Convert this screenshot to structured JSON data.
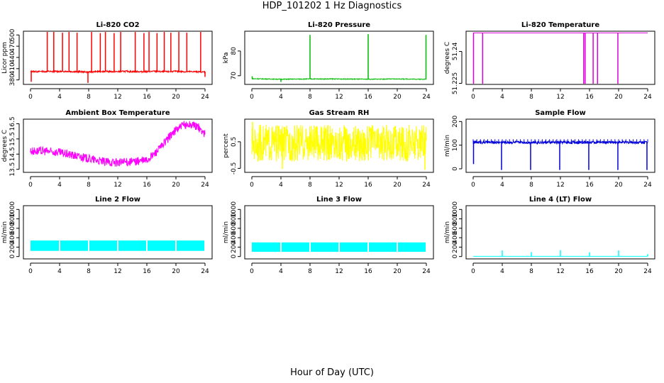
{
  "title": "HDP_101202  1 Hz Diagnostics",
  "xlabel": "Hour of Day (UTC)",
  "chart_data": [
    {
      "type": "line",
      "title": "Li-820 CO2",
      "ylabel": "Licor ppm",
      "color": "#ff0000",
      "xlim": [
        0,
        24
      ],
      "xticks": [
        0,
        4,
        8,
        12,
        16,
        20,
        24
      ],
      "ylim": [
        368,
        510
      ],
      "yticks": [
        380,
        410,
        440,
        470,
        500
      ],
      "x": [
        0,
        0.3,
        1,
        1.5,
        2,
        2.3,
        3,
        3.5,
        4,
        5,
        6,
        7,
        8,
        9,
        10,
        11,
        12,
        13,
        14,
        15,
        16,
        17,
        18,
        19,
        20,
        21,
        22,
        23,
        24
      ],
      "values": [
        402,
        403,
        402,
        403,
        402,
        403,
        402,
        403,
        402,
        403,
        402,
        402,
        401,
        402,
        403,
        402,
        402,
        403,
        402,
        402,
        402,
        403,
        402,
        402,
        403,
        402,
        402,
        402,
        401
      ],
      "spikes": [
        {
          "x": 0.1,
          "y": 375
        },
        {
          "x": 2.3,
          "y": 508
        },
        {
          "x": 3.2,
          "y": 508
        },
        {
          "x": 4.4,
          "y": 506
        },
        {
          "x": 5.3,
          "y": 508
        },
        {
          "x": 6.4,
          "y": 506
        },
        {
          "x": 8.4,
          "y": 508
        },
        {
          "x": 9.6,
          "y": 505
        },
        {
          "x": 10.3,
          "y": 508
        },
        {
          "x": 11.5,
          "y": 505
        },
        {
          "x": 12.4,
          "y": 508
        },
        {
          "x": 14.4,
          "y": 508
        },
        {
          "x": 15.6,
          "y": 505
        },
        {
          "x": 16.3,
          "y": 508
        },
        {
          "x": 17.4,
          "y": 505
        },
        {
          "x": 18.4,
          "y": 508
        },
        {
          "x": 19.3,
          "y": 506
        },
        {
          "x": 20.4,
          "y": 508
        },
        {
          "x": 21.5,
          "y": 506
        },
        {
          "x": 23.4,
          "y": 508
        },
        {
          "x": 7.9,
          "y": 372
        },
        {
          "x": 24,
          "y": 388
        }
      ],
      "noise": 2
    },
    {
      "type": "line",
      "title": "Li-820 Pressure",
      "ylabel": "kPa",
      "color": "#00bb00",
      "xlim": [
        0,
        24
      ],
      "xticks": [
        0,
        4,
        8,
        12,
        16,
        20,
        24
      ],
      "ylim": [
        66.5,
        88
      ],
      "yticks": [
        70,
        80
      ],
      "x": [
        0,
        4,
        8,
        12,
        16,
        20,
        24
      ],
      "values": [
        68.8,
        68.6,
        68.7,
        68.7,
        68.6,
        68.7,
        68.6
      ],
      "spikes": [
        {
          "x": 8,
          "y": 86.5
        },
        {
          "x": 16,
          "y": 86.8
        },
        {
          "x": 23.95,
          "y": 86.5
        },
        {
          "x": 0.05,
          "y": 69.8
        },
        {
          "x": 4,
          "y": 67.5
        }
      ],
      "noise": 0.15
    },
    {
      "type": "line",
      "title": "Li-820 Temperature",
      "ylabel": "degrees C",
      "color": "#dd00dd",
      "xlim": [
        0,
        24
      ],
      "xticks": [
        0,
        4,
        8,
        12,
        16,
        20,
        24
      ],
      "ylim": [
        51.2245,
        51.2495
      ],
      "yticks": [
        51.225,
        51.24
      ],
      "x": [
        0,
        24
      ],
      "values": [
        51.2487,
        51.2487
      ],
      "spikes": [
        {
          "x": 0.05,
          "y": 51.2248
        },
        {
          "x": 1.3,
          "y": 51.2248
        },
        {
          "x": 15.2,
          "y": 51.2248
        },
        {
          "x": 15.4,
          "y": 51.2248
        },
        {
          "x": 16.5,
          "y": 51.2248
        },
        {
          "x": 17.1,
          "y": 51.2248
        },
        {
          "x": 19.9,
          "y": 51.2248
        }
      ],
      "noise": 0
    },
    {
      "type": "line",
      "title": "Ambient Box Temperature",
      "ylabel": "degrees C",
      "color": "#ff00ff",
      "xlim": [
        0,
        24
      ],
      "xticks": [
        0,
        4,
        8,
        12,
        16,
        20,
        24
      ],
      "ylim": [
        13.3,
        16.8
      ],
      "yticks": [
        13.5,
        14.5,
        15.5,
        16.5
      ],
      "x": [
        0,
        2,
        4,
        6,
        8,
        10,
        12,
        14,
        16,
        17,
        18,
        19,
        20,
        21,
        22,
        23,
        24
      ],
      "values": [
        14.7,
        14.7,
        14.6,
        14.4,
        14.2,
        14.0,
        13.95,
        14.0,
        14.1,
        14.5,
        15.0,
        15.6,
        16.1,
        16.4,
        16.45,
        16.3,
        15.8
      ],
      "spikes": [],
      "noise": 0.28
    },
    {
      "type": "line",
      "title": "Gas Stream RH",
      "ylabel": "percent",
      "color": "#ffff00",
      "xlim": [
        0,
        24
      ],
      "xticks": [
        0,
        4,
        8,
        12,
        16,
        20,
        24
      ],
      "ylim": [
        -0.65,
        1.35
      ],
      "yticks": [
        -0.5,
        0.5
      ],
      "x": [
        0,
        24
      ],
      "values": [
        0.45,
        0.45
      ],
      "spikes": [
        {
          "x": 23.8,
          "y": -0.55
        },
        {
          "x": 4.2,
          "y": -0.52
        },
        {
          "x": 0.1,
          "y": 1.25
        }
      ],
      "noise": 0.7
    },
    {
      "type": "line",
      "title": "Sample Flow",
      "ylabel": "ml/min",
      "color": "#0000dd",
      "xlim": [
        0,
        24
      ],
      "xticks": [
        0,
        4,
        8,
        12,
        16,
        20,
        24
      ],
      "ylim": [
        -15,
        210
      ],
      "yticks": [
        0,
        100,
        200
      ],
      "x": [
        0,
        24
      ],
      "values": [
        112,
        112
      ],
      "spikes": [
        {
          "x": 0.05,
          "y": 20
        },
        {
          "x": 3.9,
          "y": -5
        },
        {
          "x": 7.9,
          "y": -5
        },
        {
          "x": 11.9,
          "y": -5
        },
        {
          "x": 15.9,
          "y": -5
        },
        {
          "x": 19.9,
          "y": -5
        },
        {
          "x": 23.9,
          "y": -5
        }
      ],
      "ticks_above": 125,
      "noise": 6
    },
    {
      "type": "line",
      "title": "Line 2 Flow",
      "ylabel": "ml/min",
      "color": "#00ffff",
      "xlim": [
        0,
        24
      ],
      "xticks": [
        0,
        4,
        8,
        12,
        16,
        20,
        24
      ],
      "ylim": [
        -50,
        1080
      ],
      "yticks": [
        0,
        200,
        400,
        600,
        800,
        1000
      ],
      "x": [
        0,
        24
      ],
      "values": [
        240,
        240
      ],
      "band": [
        120,
        340
      ],
      "gaps": [
        4,
        8,
        12,
        16,
        20
      ],
      "spikes": [],
      "noise": 0
    },
    {
      "type": "line",
      "title": "Line 3 Flow",
      "ylabel": "ml/min",
      "color": "#00ffff",
      "xlim": [
        0,
        24
      ],
      "xticks": [
        0,
        4,
        8,
        12,
        16,
        20,
        24
      ],
      "ylim": [
        -50,
        1080
      ],
      "yticks": [
        0,
        200,
        400,
        600,
        800,
        1000
      ],
      "x": [
        0,
        24
      ],
      "values": [
        210,
        210
      ],
      "band": [
        100,
        300
      ],
      "gaps": [
        4,
        8,
        12,
        16,
        20
      ],
      "spikes": [],
      "noise": 0
    },
    {
      "type": "line",
      "title": "Line 4 (LT) Flow",
      "ylabel": "ml/min",
      "color": "#00ffff",
      "xlim": [
        0,
        24
      ],
      "xticks": [
        0,
        4,
        8,
        12,
        16,
        20,
        24
      ],
      "ylim": [
        -50,
        1080
      ],
      "yticks": [
        0,
        200,
        400,
        600,
        800,
        1000
      ],
      "x": [
        0,
        24
      ],
      "values": [
        5,
        5
      ],
      "spikes": [
        {
          "x": 4,
          "y": 130
        },
        {
          "x": 8,
          "y": 95
        },
        {
          "x": 12,
          "y": 135
        },
        {
          "x": 16,
          "y": 90
        },
        {
          "x": 20,
          "y": 130
        },
        {
          "x": 24,
          "y": 50
        }
      ],
      "noise": 0
    }
  ]
}
